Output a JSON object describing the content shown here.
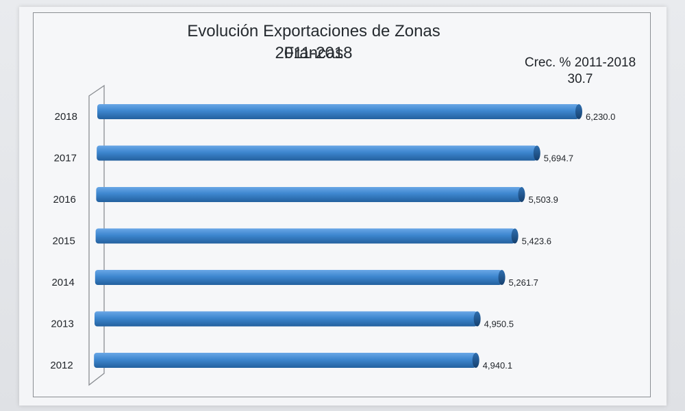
{
  "chart_data": {
    "type": "bar",
    "orientation": "horizontal",
    "title": "Evolución Exportaciones de Zonas Francas",
    "subtitle": "2011-2018",
    "annotation": {
      "label": "Crec. % 2011-2018",
      "value": "30.7"
    },
    "categories": [
      "2018",
      "2017",
      "2016",
      "2015",
      "2014",
      "2013",
      "2012"
    ],
    "values": [
      6230.0,
      5694.7,
      5503.9,
      5423.6,
      5261.7,
      4950.5,
      4940.1
    ],
    "value_labels": [
      "6,230.0",
      "5,694.7",
      "5,503.9",
      "5,423.6",
      "5,261.7",
      "4,950.5",
      "4,940.1"
    ],
    "xlim": [
      0,
      6230.0
    ],
    "grid": false,
    "legend": "none",
    "bar_color": "#3d86cf"
  }
}
